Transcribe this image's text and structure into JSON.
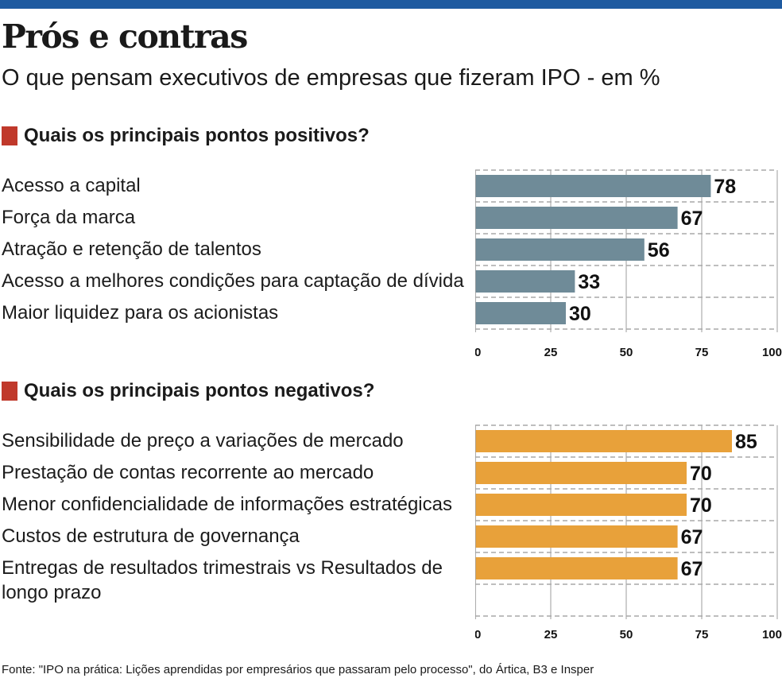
{
  "header": {
    "title": "Prós e contras",
    "subtitle": "O que pensam executivos de empresas que fizeram IPO - em %"
  },
  "chart_data": [
    {
      "type": "bar",
      "orientation": "horizontal",
      "title": "Quais os principais pontos positivos?",
      "categories": [
        "Acesso a capital",
        "Força da marca",
        "Atração e retenção de talentos",
        "Acesso a melhores condições para captação de dívida",
        "Maior liquidez para os acionistas"
      ],
      "values": [
        78,
        67,
        56,
        33,
        30
      ],
      "xlim": [
        0,
        100
      ],
      "xticks": [
        "0",
        "25",
        "50",
        "75",
        "100"
      ],
      "grid": true,
      "color": "#6f8b98"
    },
    {
      "type": "bar",
      "orientation": "horizontal",
      "title": "Quais os principais pontos negativos?",
      "categories": [
        "Sensibilidade de preço a variações de mercado",
        "Prestação de contas recorrente ao mercado",
        "Menor confidencialidade de informações estratégicas",
        "Custos de estrutura de governança",
        "Entregas de resultados trimestrais vs Resultados de longo prazo"
      ],
      "values": [
        85,
        70,
        70,
        67,
        67
      ],
      "xlim": [
        0,
        100
      ],
      "xticks": [
        "0",
        "25",
        "50",
        "75",
        "100"
      ],
      "grid": true,
      "color": "#e8a13a"
    }
  ],
  "source": "Fonte: \"IPO na prática: Lições aprendidas por empresários que passaram pelo processo\", do Ártica, B3 e Insper"
}
